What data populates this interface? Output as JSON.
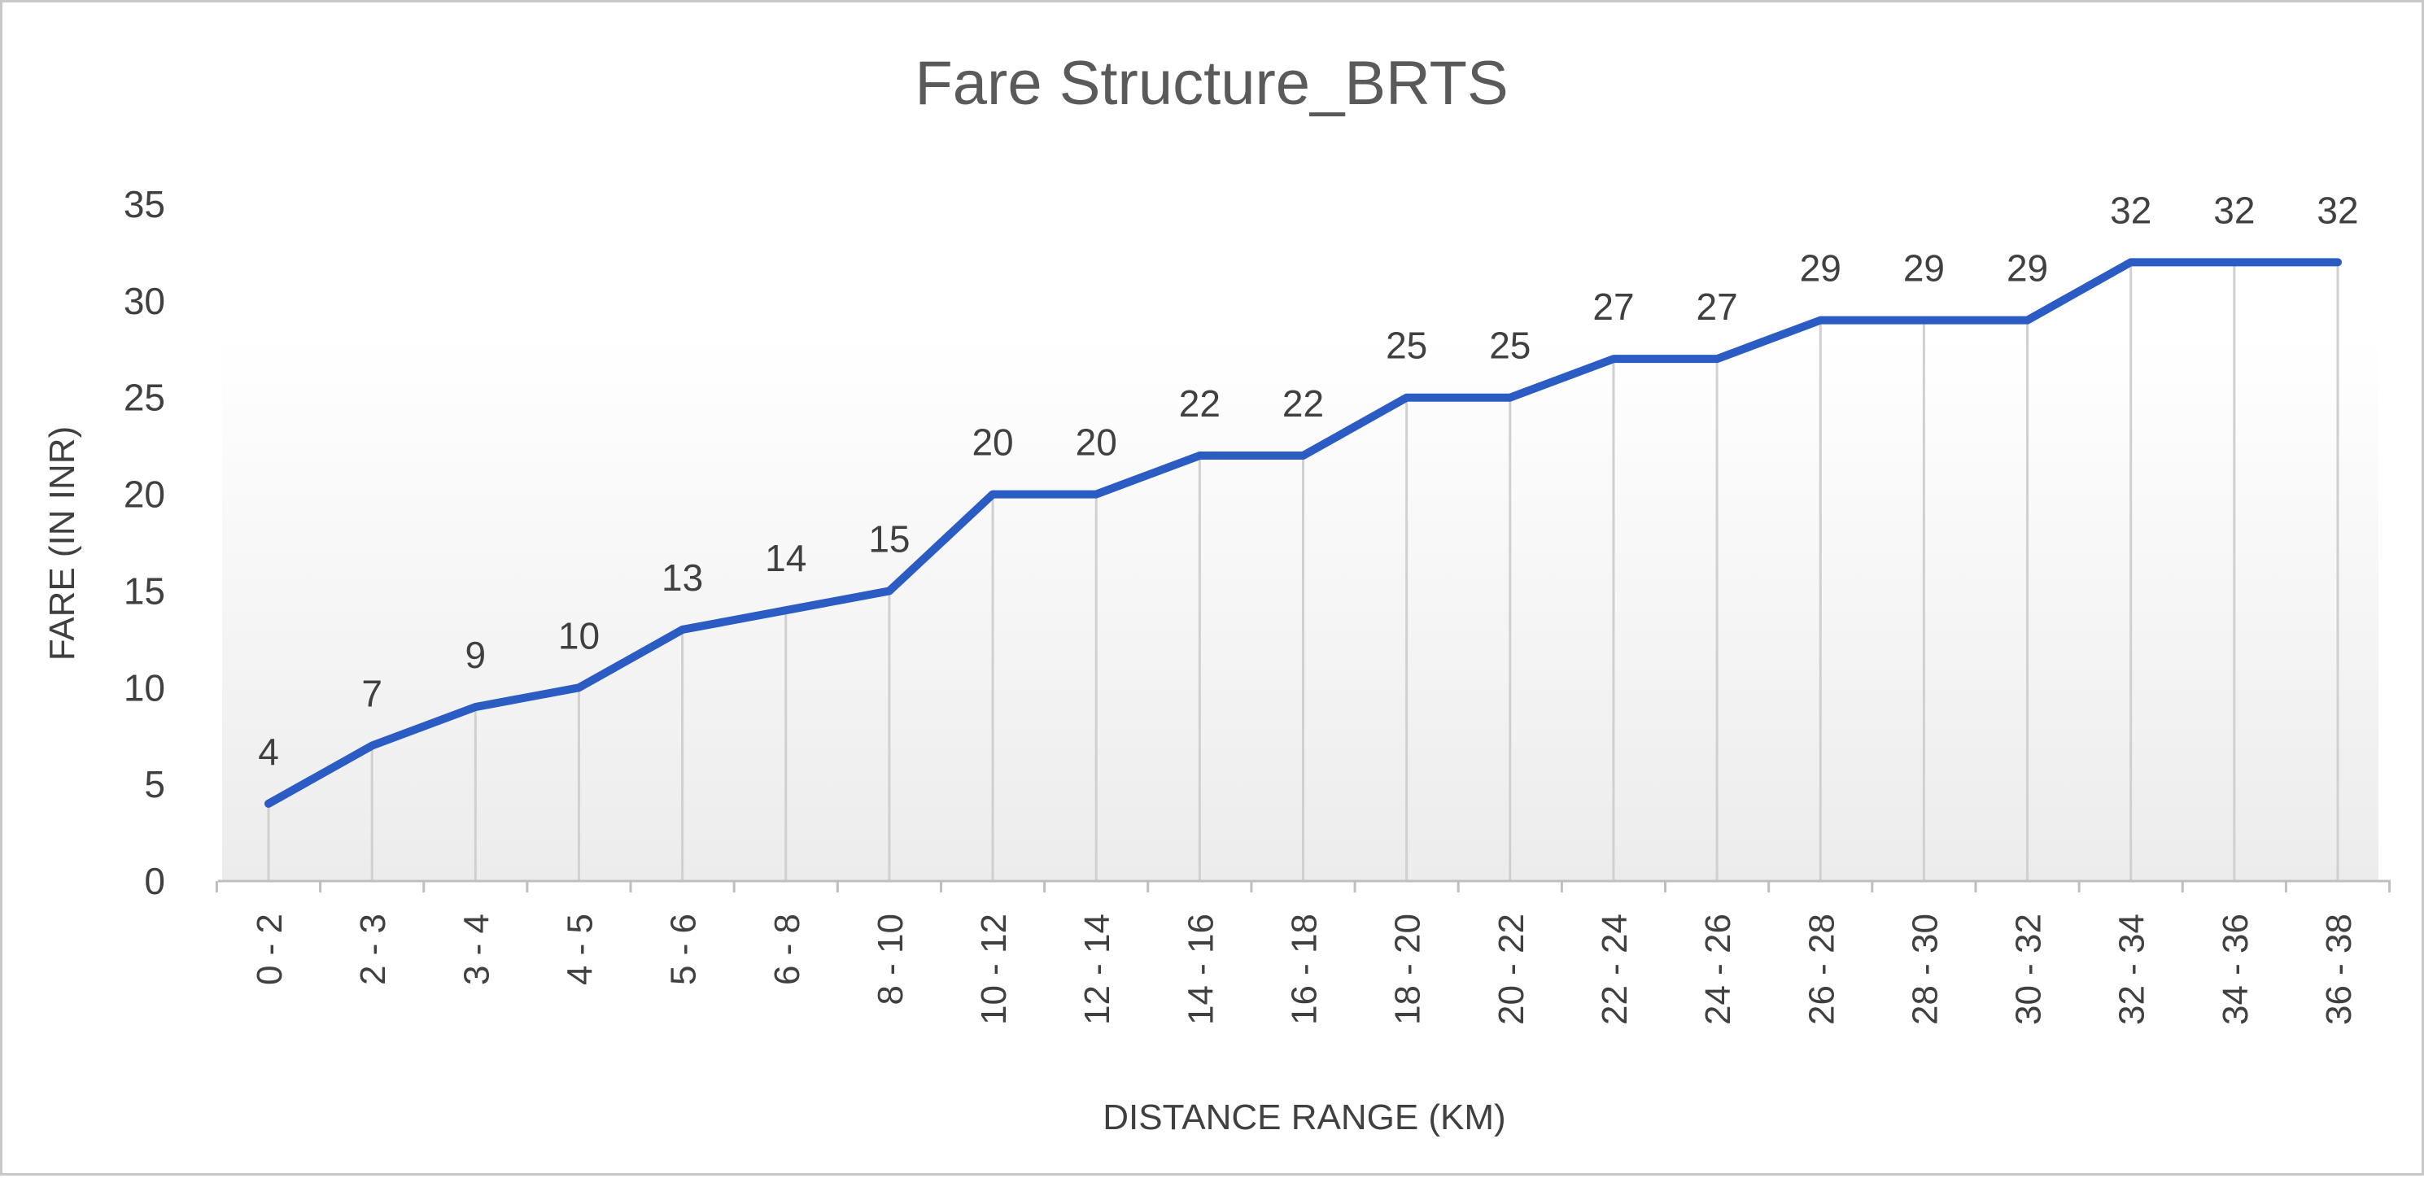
{
  "chart_data": {
    "type": "line",
    "title": "Fare Structure_BRTS",
    "xlabel": "DISTANCE RANGE (KM)",
    "ylabel": "FARE (IN INR)",
    "categories": [
      "0 - 2",
      "2 - 3",
      "3 - 4",
      "4 - 5",
      "5 - 6",
      "6 - 8",
      "8 - 10",
      "10 - 12",
      "12 - 14",
      "14 - 16",
      "16 - 18",
      "18 - 20",
      "20 - 22",
      "22 - 24",
      "24 - 26",
      "26 - 28",
      "28 - 30",
      "30 - 32",
      "32 - 34",
      "34 - 36",
      "36 - 38"
    ],
    "values": [
      4,
      7,
      9,
      10,
      13,
      14,
      15,
      20,
      20,
      22,
      22,
      25,
      25,
      27,
      27,
      29,
      29,
      29,
      32,
      32,
      32
    ],
    "ylim": [
      0,
      35
    ],
    "yticks": [
      0,
      5,
      10,
      15,
      20,
      25,
      30,
      35
    ],
    "grid": "vertical drop lines at each category",
    "data_labels": true,
    "colors": {
      "line": "#2b5cc4",
      "drop_line": "#d0d0d0",
      "axis": "#bfbfbf"
    }
  }
}
